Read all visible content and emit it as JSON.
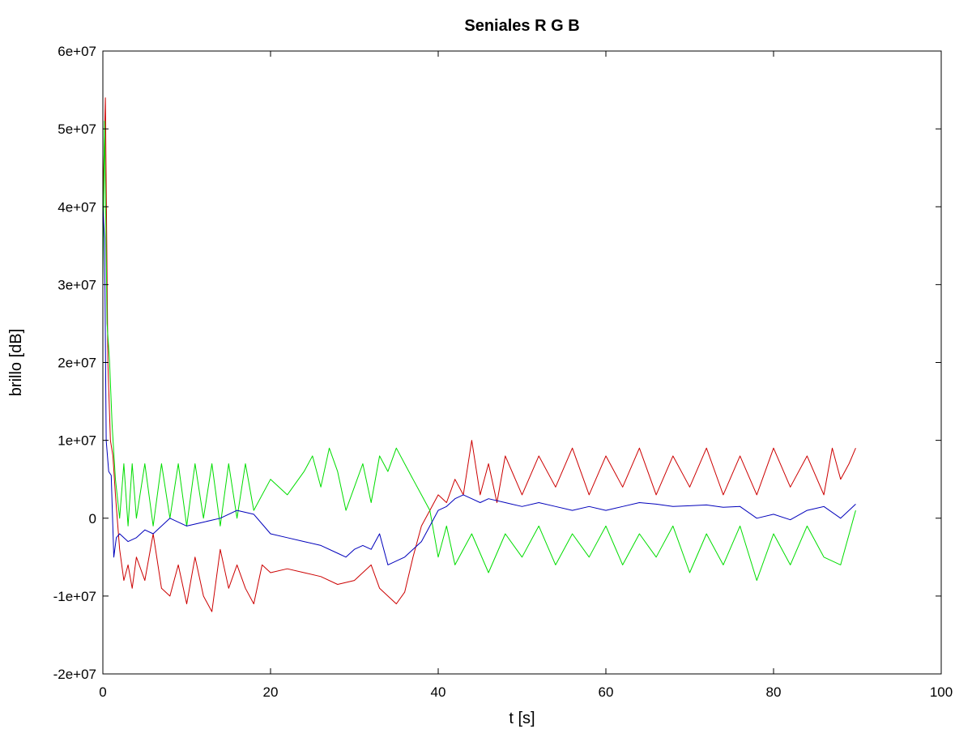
{
  "chart_data": {
    "type": "line",
    "title": "Seniales R G B",
    "xlabel": "t [s]",
    "ylabel": "brillo [dB]",
    "xlim": [
      0,
      100
    ],
    "ylim": [
      -20000000,
      60000000
    ],
    "x_ticks": [
      0,
      20,
      40,
      60,
      80,
      100
    ],
    "x_tick_labels": [
      "0",
      "20",
      "40",
      "60",
      "80",
      "100"
    ],
    "y_ticks": [
      -20000000,
      -10000000,
      0,
      10000000,
      20000000,
      30000000,
      40000000,
      50000000,
      60000000
    ],
    "y_tick_labels": [
      "-2e+07",
      "-1e+07",
      "0",
      "1e+07",
      "2e+07",
      "3e+07",
      "4e+07",
      "5e+07",
      "6e+07"
    ],
    "grid": false,
    "legend": "none",
    "series": [
      {
        "color": "#cc0000",
        "x": [
          0,
          0.3,
          0.6,
          0.9,
          1.2,
          1.5,
          2,
          2.5,
          3,
          3.5,
          4,
          5,
          6,
          7,
          8,
          9,
          10,
          11,
          12,
          13,
          14,
          15,
          16,
          17,
          18,
          19,
          20,
          22,
          24,
          26,
          28,
          30,
          32,
          33,
          34,
          35,
          36,
          37,
          38,
          39,
          40,
          41,
          42,
          43,
          44,
          45,
          46,
          47,
          48,
          50,
          52,
          54,
          56,
          58,
          60,
          62,
          64,
          66,
          68,
          70,
          72,
          74,
          76,
          78,
          80,
          82,
          84,
          86,
          87,
          88,
          89,
          89.8
        ],
        "y": [
          40000000,
          54000000,
          20000000,
          10000000,
          8000000,
          3000000,
          -4000000,
          -8000000,
          -6000000,
          -9000000,
          -5000000,
          -8000000,
          -2000000,
          -9000000,
          -10000000,
          -6000000,
          -11000000,
          -5000000,
          -10000000,
          -12000000,
          -4000000,
          -9000000,
          -6000000,
          -9000000,
          -11000000,
          -6000000,
          -7000000,
          -6500000,
          -7000000,
          -7500000,
          -8500000,
          -8000000,
          -6000000,
          -9000000,
          -10000000,
          -11000000,
          -9500000,
          -5000000,
          -1000000,
          1000000,
          3000000,
          2000000,
          5000000,
          3000000,
          10000000,
          3000000,
          7000000,
          2000000,
          8000000,
          3000000,
          8000000,
          4000000,
          9000000,
          3000000,
          8000000,
          4000000,
          9000000,
          3000000,
          8000000,
          4000000,
          9000000,
          3000000,
          8000000,
          3000000,
          9000000,
          4000000,
          8000000,
          3000000,
          9000000,
          5000000,
          7000000,
          9000000
        ]
      },
      {
        "color": "#00dd00",
        "x": [
          0,
          0.2,
          0.5,
          0.8,
          1.1,
          1.5,
          2,
          2.5,
          3,
          3.5,
          4,
          5,
          6,
          7,
          8,
          9,
          10,
          11,
          12,
          13,
          14,
          15,
          16,
          17,
          18,
          20,
          22,
          24,
          25,
          26,
          27,
          28,
          29,
          30,
          31,
          32,
          33,
          34,
          35,
          36,
          37,
          38,
          39,
          40,
          41,
          42,
          44,
          46,
          48,
          50,
          52,
          54,
          56,
          58,
          60,
          62,
          64,
          66,
          68,
          70,
          72,
          74,
          76,
          78,
          80,
          82,
          84,
          86,
          88,
          89.8
        ],
        "y": [
          30000000,
          51000000,
          25000000,
          20000000,
          12000000,
          5000000,
          0,
          7000000,
          -1000000,
          7000000,
          0,
          7000000,
          -1000000,
          7000000,
          0,
          7000000,
          -1000000,
          7000000,
          0,
          7000000,
          -1000000,
          7000000,
          0,
          7000000,
          1000000,
          5000000,
          3000000,
          6000000,
          8000000,
          4000000,
          9000000,
          6000000,
          1000000,
          4000000,
          7000000,
          2000000,
          8000000,
          6000000,
          9000000,
          7000000,
          5000000,
          3000000,
          1000000,
          -5000000,
          -1000000,
          -6000000,
          -2000000,
          -7000000,
          -2000000,
          -5000000,
          -1000000,
          -6000000,
          -2000000,
          -5000000,
          -1000000,
          -6000000,
          -2000000,
          -5000000,
          -1000000,
          -7000000,
          -2000000,
          -6000000,
          -1000000,
          -8000000,
          -2000000,
          -6000000,
          -1000000,
          -5000000,
          -6000000,
          1000000
        ]
      },
      {
        "color": "#0000bb",
        "x": [
          0,
          0.2,
          0.4,
          0.7,
          1,
          1.3,
          1.6,
          2,
          3,
          4,
          5,
          6,
          8,
          10,
          12,
          14,
          16,
          18,
          20,
          22,
          24,
          26,
          28,
          29,
          30,
          31,
          32,
          33,
          34,
          35,
          36,
          37,
          38,
          39,
          40,
          41,
          42,
          43,
          44,
          45,
          46,
          48,
          50,
          52,
          54,
          56,
          58,
          60,
          62,
          64,
          66,
          68,
          70,
          72,
          74,
          76,
          78,
          80,
          82,
          84,
          86,
          88,
          89.8
        ],
        "y": [
          40000000,
          36000000,
          10000000,
          6000000,
          5500000,
          -5000000,
          -2500000,
          -2000000,
          -3000000,
          -2500000,
          -1500000,
          -2000000,
          0,
          -1000000,
          -500000,
          0,
          1000000,
          500000,
          -2000000,
          -2500000,
          -3000000,
          -3500000,
          -4500000,
          -5000000,
          -4000000,
          -3500000,
          -4000000,
          -2000000,
          -6000000,
          -5500000,
          -5000000,
          -4000000,
          -3000000,
          -1000000,
          1000000,
          1500000,
          2500000,
          3000000,
          2500000,
          2000000,
          2500000,
          2000000,
          1500000,
          2000000,
          1500000,
          1000000,
          1500000,
          1000000,
          1500000,
          2000000,
          1800000,
          1500000,
          1600000,
          1700000,
          1400000,
          1500000,
          0,
          500000,
          -200000,
          1000000,
          1500000,
          0,
          1800000
        ]
      }
    ]
  }
}
